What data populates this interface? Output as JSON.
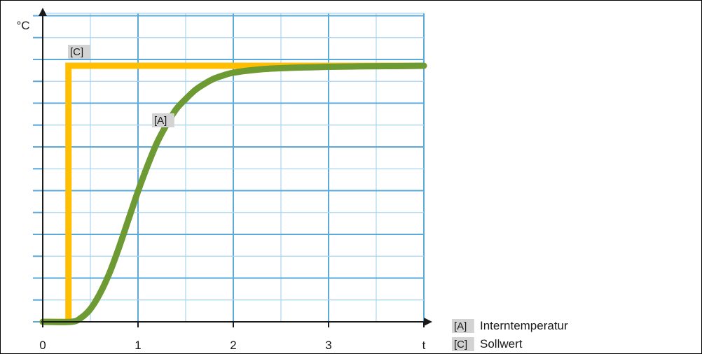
{
  "chart_data": {
    "type": "line",
    "xlabel": "t",
    "ylabel": "°C",
    "x_ticks": [
      0,
      1,
      2,
      3
    ],
    "xlim": [
      0,
      4
    ],
    "ylim": [
      0,
      100
    ],
    "grid": true,
    "legend_position": "bottom-right",
    "series": [
      {
        "key": "A",
        "tag": "[A]",
        "name": "Interntemperatur",
        "color": "#6e9a34",
        "x": [
          0,
          0.3,
          0.4,
          0.5,
          0.6,
          0.7,
          0.8,
          0.9,
          1.0,
          1.1,
          1.2,
          1.3,
          1.4,
          1.5,
          1.6,
          1.7,
          1.8,
          1.9,
          2.0,
          2.2,
          2.4,
          2.6,
          2.8,
          3.0,
          3.2,
          3.4,
          3.6,
          3.8,
          4.0
        ],
        "y": [
          0,
          0,
          1.5,
          5,
          11,
          19,
          29,
          40,
          51,
          61,
          70,
          77,
          83,
          87,
          90.5,
          93,
          95,
          96.3,
          97.3,
          98.3,
          98.9,
          99.2,
          99.4,
          99.6,
          99.7,
          99.8,
          99.85,
          99.9,
          100
        ]
      },
      {
        "key": "C",
        "tag": "[C]",
        "name": "Sollwert",
        "color": "#ffbf00",
        "x": [
          0,
          0.27,
          0.27,
          4.0
        ],
        "y": [
          0,
          0,
          100,
          100
        ]
      }
    ]
  }
}
